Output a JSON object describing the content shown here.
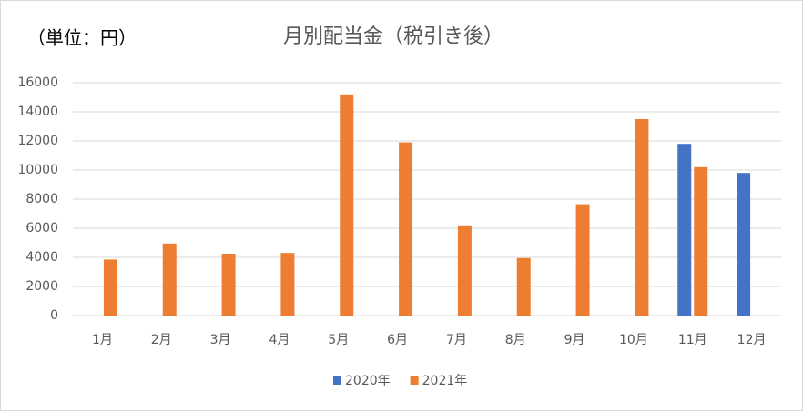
{
  "chart_data": {
    "type": "bar",
    "title": "月別配当金（税引き後）",
    "annotation": "（単位：円）",
    "categories": [
      "1月",
      "2月",
      "3月",
      "4月",
      "5月",
      "6月",
      "7月",
      "8月",
      "9月",
      "10月",
      "11月",
      "12月"
    ],
    "series": [
      {
        "name": "2020年",
        "color": "#4472c4",
        "values": [
          null,
          null,
          null,
          null,
          null,
          null,
          null,
          null,
          null,
          null,
          11800,
          9800
        ]
      },
      {
        "name": "2021年",
        "color": "#ed7d31",
        "values": [
          3850,
          4950,
          4250,
          4300,
          15200,
          11900,
          6200,
          3950,
          7650,
          13500,
          10200,
          null
        ]
      }
    ],
    "ylim": [
      0,
      16000
    ],
    "yticks": [
      0,
      2000,
      4000,
      6000,
      8000,
      10000,
      12000,
      14000,
      16000
    ],
    "grid": true,
    "legend": "bottom"
  }
}
